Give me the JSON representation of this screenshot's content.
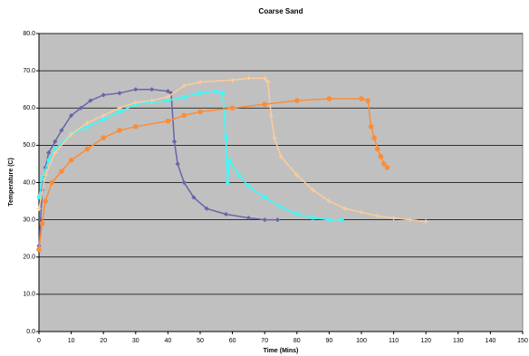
{
  "chart_data": {
    "type": "scatter-line",
    "title": "Coarse Sand",
    "xlabel": "Time (Mins)",
    "ylabel": "Temperature (C)",
    "xlim": [
      0,
      150
    ],
    "xticks": [
      0,
      10,
      20,
      30,
      40,
      50,
      60,
      70,
      80,
      90,
      100,
      110,
      120,
      130,
      140,
      150
    ],
    "ylim": [
      0,
      80
    ],
    "yticks": [
      {
        "value": 0,
        "label": "0.0"
      },
      {
        "value": 10,
        "label": "10.0"
      },
      {
        "value": 20,
        "label": "20.0"
      },
      {
        "value": 30,
        "label": "30.0"
      },
      {
        "value": 40,
        "label": "40.0"
      },
      {
        "value": 50,
        "label": "50.0"
      },
      {
        "value": 60,
        "label": "60.0"
      },
      {
        "value": 70,
        "label": "70.0"
      },
      {
        "value": 80,
        "label": "80.0"
      }
    ],
    "grid": true,
    "series": [
      {
        "color": "#6666aa",
        "marker": "diamond",
        "x": [
          0,
          0.5,
          1,
          2,
          3,
          5,
          7,
          10,
          13,
          16,
          20,
          25,
          30,
          35,
          40,
          41,
          42,
          43,
          45,
          48,
          52,
          58,
          65,
          70,
          74
        ],
        "values": [
          23,
          30,
          38,
          44,
          48,
          51,
          54,
          58,
          60,
          62,
          63.5,
          64,
          65,
          65,
          64.5,
          64,
          51,
          45,
          40,
          36,
          33,
          31.5,
          30.5,
          30,
          30
        ]
      },
      {
        "color": "#33ffff",
        "marker": "square",
        "x": [
          0,
          1,
          3,
          5,
          10,
          15,
          20,
          25,
          30,
          40,
          45,
          50,
          55,
          57,
          58,
          58.5,
          59,
          62,
          65,
          70,
          75,
          80,
          85,
          90,
          94
        ],
        "values": [
          36,
          41,
          46,
          49,
          53,
          55,
          57,
          59,
          61,
          62,
          63,
          64,
          64.5,
          64,
          52,
          40,
          46,
          42,
          39,
          36,
          33.5,
          31.5,
          30.5,
          30,
          30
        ]
      },
      {
        "color": "#ffcc99",
        "marker": "plus",
        "x": [
          0,
          2,
          5,
          10,
          15,
          20,
          25,
          30,
          35,
          40,
          45,
          50,
          60,
          65,
          70,
          71,
          72,
          73,
          75,
          80,
          85,
          90,
          95,
          100,
          105,
          110,
          115,
          120
        ],
        "values": [
          33,
          42,
          48,
          53,
          56,
          58,
          60,
          61.5,
          62,
          63,
          66,
          67,
          67.5,
          68,
          68,
          67,
          58,
          52,
          47,
          42,
          38,
          35,
          33,
          32,
          31,
          30.5,
          30,
          29.5
        ]
      },
      {
        "color": "#ff8c33",
        "marker": "circle",
        "x": [
          0,
          1,
          2,
          4,
          7,
          10,
          15,
          20,
          25,
          30,
          40,
          45,
          50,
          60,
          70,
          80,
          90,
          100,
          102,
          103,
          104,
          105,
          106,
          107,
          108
        ],
        "values": [
          22,
          29,
          35,
          40,
          43,
          46,
          49,
          52,
          54,
          55,
          56.5,
          58,
          59,
          60,
          61,
          62,
          62.5,
          62.5,
          62,
          55,
          52,
          49,
          47,
          45,
          44
        ]
      }
    ]
  }
}
